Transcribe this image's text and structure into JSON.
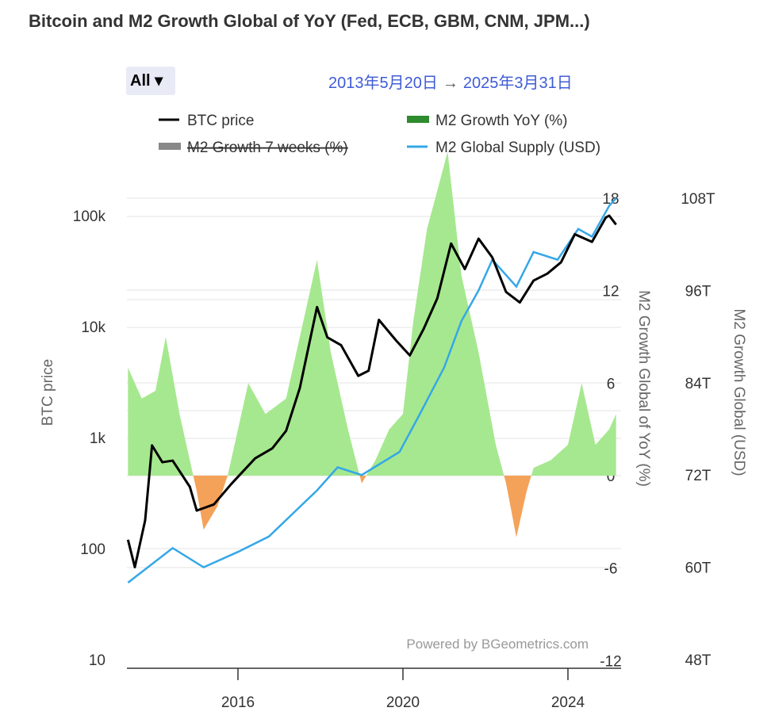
{
  "title": "Bitcoin and M2 Growth Global of YoY (Fed, ECB, GBM, CNM, JPM...)",
  "range_selector": {
    "label": "All ▾"
  },
  "date_range": {
    "start": "2013年5月20日",
    "arrow": "→",
    "end": "2025年3月31日"
  },
  "watermark": "Powered by BGeometrics.com",
  "colors": {
    "btc": "#000000",
    "m2_yoy_pos": "#a6e88f",
    "m2_yoy_neg": "#f4a259",
    "m2_yoy_legend": "#2e8b2e",
    "m2_supply": "#35a7e8",
    "m2_7w_disabled": "#888888"
  },
  "chart_data": {
    "type": "line",
    "x_range": [
      "2013-05",
      "2025-03"
    ],
    "x_ticks": [
      "2016",
      "2020",
      "2024"
    ],
    "legend": [
      {
        "name": "BTC price",
        "enabled": true
      },
      {
        "name": "M2 Growth YoY (%)",
        "enabled": true
      },
      {
        "name": "M2 Growth 7 weeks (%)",
        "enabled": false
      },
      {
        "name": "M2 Global Supply (USD)",
        "enabled": true
      }
    ],
    "legend_placement": "top",
    "axes": {
      "left": {
        "label": "BTC price",
        "scale": "log",
        "range": [
          10,
          200000
        ],
        "ticks": [
          "10",
          "100",
          "1k",
          "10k",
          "100k"
        ],
        "tick_values": [
          10,
          100,
          1000,
          10000,
          100000
        ]
      },
      "right1": {
        "label": "M2 Growth Global of YoY (%)",
        "range": [
          -12,
          18
        ],
        "ticks": [
          "18",
          "12",
          "6",
          "0",
          "-6",
          "-12"
        ],
        "tick_values": [
          18,
          12,
          6,
          0,
          -6,
          -12
        ]
      },
      "right2": {
        "label": "M2 Growth Global (USD)",
        "range": [
          48,
          108
        ],
        "unit": "T",
        "ticks": [
          "108T",
          "96T",
          "84T",
          "72T",
          "60T",
          "48T"
        ],
        "tick_values": [
          108,
          96,
          84,
          72,
          60,
          48
        ]
      }
    },
    "series": [
      {
        "name": "BTC price",
        "axis": "left",
        "points": [
          [
            "2013-05",
            120
          ],
          [
            "2013-07",
            68
          ],
          [
            "2013-10",
            180
          ],
          [
            "2013-12",
            850
          ],
          [
            "2014-03",
            600
          ],
          [
            "2014-06",
            620
          ],
          [
            "2014-11",
            360
          ],
          [
            "2015-01",
            220
          ],
          [
            "2015-06",
            250
          ],
          [
            "2015-11",
            380
          ],
          [
            "2016-06",
            650
          ],
          [
            "2016-11",
            800
          ],
          [
            "2017-03",
            1150
          ],
          [
            "2017-07",
            2800
          ],
          [
            "2017-12",
            15000
          ],
          [
            "2018-03",
            8000
          ],
          [
            "2018-07",
            6800
          ],
          [
            "2018-12",
            3600
          ],
          [
            "2019-03",
            4000
          ],
          [
            "2019-06",
            11500
          ],
          [
            "2019-11",
            7500
          ],
          [
            "2020-03",
            5500
          ],
          [
            "2020-07",
            9500
          ],
          [
            "2020-11",
            18000
          ],
          [
            "2021-03",
            56000
          ],
          [
            "2021-07",
            33000
          ],
          [
            "2021-11",
            62000
          ],
          [
            "2022-03",
            42000
          ],
          [
            "2022-07",
            20500
          ],
          [
            "2022-11",
            16500
          ],
          [
            "2023-03",
            26000
          ],
          [
            "2023-07",
            30000
          ],
          [
            "2023-11",
            38000
          ],
          [
            "2024-03",
            68000
          ],
          [
            "2024-08",
            58000
          ],
          [
            "2024-12",
            96000
          ],
          [
            "2025-01",
            100000
          ],
          [
            "2025-03",
            83000
          ]
        ]
      },
      {
        "name": "M2 Growth YoY (%)",
        "axis": "right1",
        "type": "area",
        "points": [
          [
            "2013-05",
            7
          ],
          [
            "2013-09",
            5
          ],
          [
            "2014-01",
            5.5
          ],
          [
            "2014-04",
            9
          ],
          [
            "2014-08",
            4
          ],
          [
            "2015-01",
            -1
          ],
          [
            "2015-03",
            -3.5
          ],
          [
            "2015-07",
            -2
          ],
          [
            "2015-10",
            0
          ],
          [
            "2016-04",
            6
          ],
          [
            "2016-09",
            4
          ],
          [
            "2017-03",
            5
          ],
          [
            "2017-12",
            14
          ],
          [
            "2018-04",
            8
          ],
          [
            "2018-09",
            3
          ],
          [
            "2019-01",
            -0.5
          ],
          [
            "2019-05",
            1
          ],
          [
            "2019-09",
            3
          ],
          [
            "2020-01",
            4
          ],
          [
            "2020-04",
            10
          ],
          [
            "2020-08",
            16
          ],
          [
            "2021-02",
            21
          ],
          [
            "2021-06",
            13
          ],
          [
            "2021-11",
            8
          ],
          [
            "2022-04",
            2
          ],
          [
            "2022-07",
            -0.5
          ],
          [
            "2022-10",
            -4
          ],
          [
            "2023-01",
            -1
          ],
          [
            "2023-03",
            0.5
          ],
          [
            "2023-08",
            1
          ],
          [
            "2024-01",
            2
          ],
          [
            "2024-05",
            6
          ],
          [
            "2024-09",
            2
          ],
          [
            "2025-01",
            3
          ],
          [
            "2025-03",
            4
          ]
        ]
      },
      {
        "name": "M2 Global Supply (USD)",
        "axis": "right2",
        "unit": "T",
        "points": [
          [
            "2013-05",
            58
          ],
          [
            "2014-06",
            62.5
          ],
          [
            "2015-03",
            60
          ],
          [
            "2016-01",
            62
          ],
          [
            "2016-10",
            64
          ],
          [
            "2017-12",
            70
          ],
          [
            "2018-06",
            73
          ],
          [
            "2019-01",
            72
          ],
          [
            "2019-12",
            75
          ],
          [
            "2020-06",
            80
          ],
          [
            "2021-01",
            86
          ],
          [
            "2021-06",
            92
          ],
          [
            "2021-11",
            96
          ],
          [
            "2022-03",
            100
          ],
          [
            "2022-10",
            96.5
          ],
          [
            "2023-03",
            101
          ],
          [
            "2023-10",
            100
          ],
          [
            "2024-04",
            104
          ],
          [
            "2024-08",
            103
          ],
          [
            "2025-01",
            107
          ],
          [
            "2025-03",
            108
          ]
        ]
      }
    ]
  }
}
